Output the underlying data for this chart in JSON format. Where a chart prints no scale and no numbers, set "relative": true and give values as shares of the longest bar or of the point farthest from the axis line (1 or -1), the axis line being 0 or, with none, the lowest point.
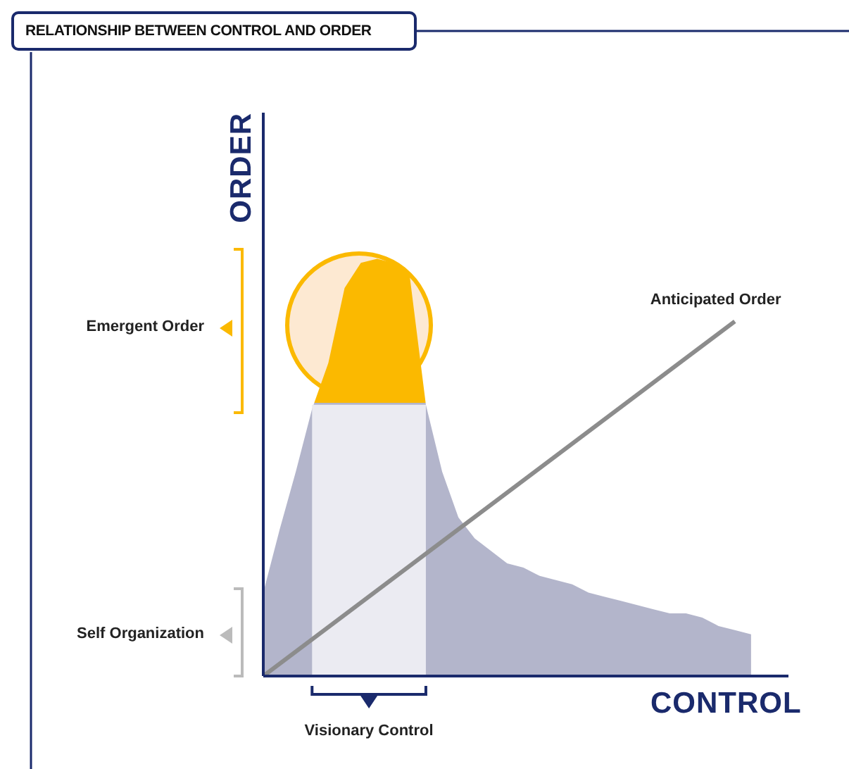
{
  "chart_data": {
    "type": "area",
    "title": "RELATIONSHIP BETWEEN CONTROL AND ORDER",
    "xlabel": "CONTROL",
    "ylabel": "ORDER",
    "relative": true,
    "annotations": [
      "Emergent Order",
      "Self Organization",
      "Visionary Control"
    ],
    "categories": [
      null,
      null,
      null,
      null,
      null,
      null,
      null,
      null,
      null,
      null,
      null,
      null,
      null,
      null,
      null,
      null,
      null,
      null,
      null,
      null,
      null,
      null,
      null,
      null,
      null,
      null,
      null,
      null,
      null,
      null,
      null
    ],
    "series": [
      {
        "color": "#b3b5cb",
        "values": [
          0.2,
          0.35,
          0.49,
          0.64,
          0.75,
          0.93,
          0.99,
          1,
          0.99,
          0.96,
          0.65,
          0.49,
          0.38,
          0.33,
          0.3,
          0.27,
          0.26,
          0.24,
          0.23,
          0.22,
          0.2,
          0.19,
          0.18,
          0.17,
          0.16,
          0.15,
          0.15,
          0.14,
          0.12,
          0.11,
          0.1
        ]
      },
      {
        "color": "#ebebf2",
        "values": [
          null,
          null,
          null,
          0.65,
          0.65,
          0.65,
          0.65,
          0.65,
          0.65,
          0.65,
          0.65,
          null,
          null,
          null,
          null,
          null,
          null,
          null,
          null,
          null,
          null,
          null,
          null,
          null,
          null,
          null,
          null,
          null,
          null,
          null,
          null
        ]
      },
      {
        "type": "line",
        "name": "Anticipated Order",
        "color": "#8c8c8c",
        "values": [
          0,
          null,
          null,
          null,
          null,
          null,
          null,
          null,
          null,
          null,
          null,
          null,
          null,
          null,
          null,
          null,
          null,
          null,
          null,
          null,
          null,
          null,
          null,
          null,
          null,
          null,
          null,
          null,
          null,
          0.85,
          null
        ]
      }
    ]
  }
}
